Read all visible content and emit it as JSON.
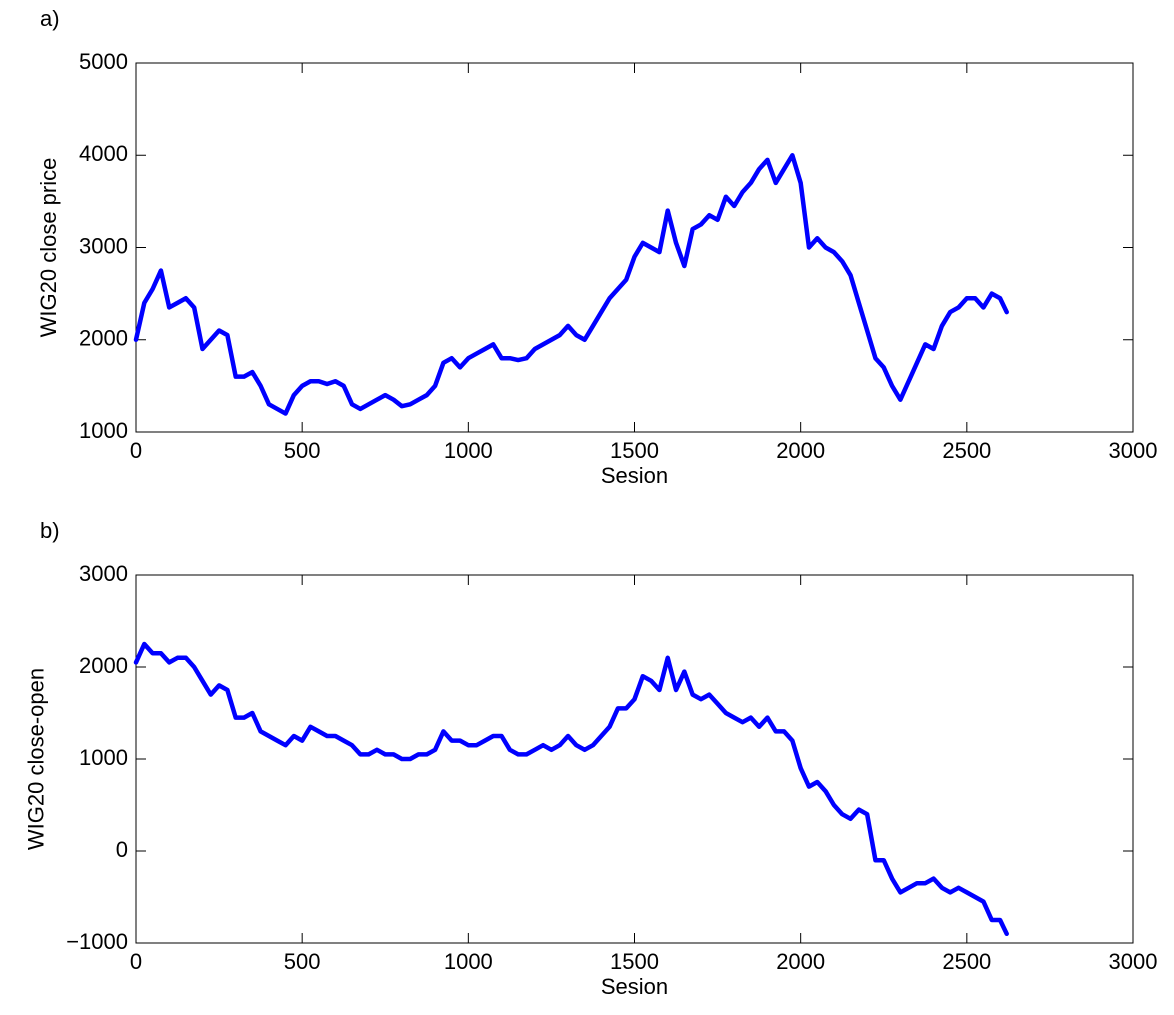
{
  "chart_data": [
    {
      "type": "line",
      "title": "a)",
      "xlabel": "Sesion",
      "ylabel": "WIG20 close price",
      "x": [
        0,
        25,
        50,
        75,
        100,
        125,
        150,
        175,
        200,
        225,
        250,
        275,
        300,
        325,
        350,
        375,
        400,
        425,
        450,
        475,
        500,
        525,
        550,
        575,
        600,
        625,
        650,
        675,
        700,
        725,
        750,
        775,
        800,
        825,
        850,
        875,
        900,
        925,
        950,
        975,
        1000,
        1025,
        1050,
        1075,
        1100,
        1125,
        1150,
        1175,
        1200,
        1225,
        1250,
        1275,
        1300,
        1325,
        1350,
        1375,
        1400,
        1425,
        1450,
        1475,
        1500,
        1525,
        1550,
        1575,
        1600,
        1625,
        1650,
        1675,
        1700,
        1725,
        1750,
        1775,
        1800,
        1825,
        1850,
        1875,
        1900,
        1925,
        1950,
        1975,
        2000,
        2025,
        2050,
        2075,
        2100,
        2125,
        2150,
        2175,
        2200,
        2225,
        2250,
        2275,
        2300,
        2325,
        2350,
        2375,
        2400,
        2425,
        2450,
        2475,
        2500,
        2525,
        2550,
        2575,
        2600,
        2620
      ],
      "series": [
        {
          "color": "#0000ff",
          "values": [
            2000,
            2400,
            2550,
            2750,
            2350,
            2400,
            2450,
            2350,
            1900,
            2000,
            2100,
            2050,
            1600,
            1600,
            1650,
            1500,
            1300,
            1250,
            1200,
            1400,
            1500,
            1550,
            1550,
            1520,
            1550,
            1500,
            1300,
            1250,
            1300,
            1350,
            1400,
            1350,
            1280,
            1300,
            1350,
            1400,
            1500,
            1750,
            1800,
            1700,
            1800,
            1850,
            1900,
            1950,
            1800,
            1800,
            1780,
            1800,
            1900,
            1950,
            2000,
            2050,
            2150,
            2050,
            2000,
            2150,
            2300,
            2450,
            2550,
            2650,
            2900,
            3050,
            3000,
            2950,
            3400,
            3050,
            2800,
            3200,
            3250,
            3350,
            3300,
            3550,
            3450,
            3600,
            3700,
            3850,
            3950,
            3700,
            3850,
            4000,
            3700,
            3000,
            3100,
            3000,
            2950,
            2850,
            2700,
            2400,
            2100,
            1800,
            1700,
            1500,
            1350,
            1550,
            1750,
            1950,
            1900,
            2150,
            2300,
            2350,
            2450,
            2450,
            2350,
            2500,
            2450,
            2300
          ]
        }
      ],
      "xlim": [
        0,
        3000
      ],
      "xticks": [
        0,
        500,
        1000,
        1500,
        2000,
        2500,
        3000
      ],
      "ylim": [
        1000,
        5000
      ],
      "yticks": [
        1000,
        2000,
        3000,
        4000,
        5000
      ]
    },
    {
      "type": "line",
      "title": "b)",
      "xlabel": "Sesion",
      "ylabel": "WIG20 close-open",
      "x": [
        0,
        25,
        50,
        75,
        100,
        125,
        150,
        175,
        200,
        225,
        250,
        275,
        300,
        325,
        350,
        375,
        400,
        425,
        450,
        475,
        500,
        525,
        550,
        575,
        600,
        625,
        650,
        675,
        700,
        725,
        750,
        775,
        800,
        825,
        850,
        875,
        900,
        925,
        950,
        975,
        1000,
        1025,
        1050,
        1075,
        1100,
        1125,
        1150,
        1175,
        1200,
        1225,
        1250,
        1275,
        1300,
        1325,
        1350,
        1375,
        1400,
        1425,
        1450,
        1475,
        1500,
        1525,
        1550,
        1575,
        1600,
        1625,
        1650,
        1675,
        1700,
        1725,
        1750,
        1775,
        1800,
        1825,
        1850,
        1875,
        1900,
        1925,
        1950,
        1975,
        2000,
        2025,
        2050,
        2075,
        2100,
        2125,
        2150,
        2175,
        2200,
        2225,
        2250,
        2275,
        2300,
        2325,
        2350,
        2375,
        2400,
        2425,
        2450,
        2475,
        2500,
        2525,
        2550,
        2575,
        2600,
        2620
      ],
      "series": [
        {
          "color": "#0000ff",
          "values": [
            2050,
            2250,
            2150,
            2150,
            2050,
            2100,
            2100,
            2000,
            1850,
            1700,
            1800,
            1750,
            1450,
            1450,
            1500,
            1300,
            1250,
            1200,
            1150,
            1250,
            1200,
            1350,
            1300,
            1250,
            1250,
            1200,
            1150,
            1050,
            1050,
            1100,
            1050,
            1050,
            1000,
            1000,
            1050,
            1050,
            1100,
            1300,
            1200,
            1200,
            1150,
            1150,
            1200,
            1250,
            1250,
            1100,
            1050,
            1050,
            1100,
            1150,
            1100,
            1150,
            1250,
            1150,
            1100,
            1150,
            1250,
            1350,
            1550,
            1550,
            1650,
            1900,
            1850,
            1750,
            2100,
            1750,
            1950,
            1700,
            1650,
            1700,
            1600,
            1500,
            1450,
            1400,
            1450,
            1350,
            1450,
            1300,
            1300,
            1200,
            900,
            700,
            750,
            650,
            500,
            400,
            350,
            450,
            400,
            -100,
            -100,
            -300,
            -450,
            -400,
            -350,
            -350,
            -300,
            -400,
            -450,
            -400,
            -450,
            -500,
            -550,
            -750,
            -750,
            -900
          ]
        }
      ],
      "xlim": [
        0,
        3000
      ],
      "xticks": [
        0,
        500,
        1000,
        1500,
        2000,
        2500,
        3000
      ],
      "ylim": [
        -1000,
        3000
      ],
      "yticks": [
        {
          "value": -1000,
          "label": "−1000"
        },
        0,
        1000,
        2000,
        3000
      ]
    }
  ]
}
